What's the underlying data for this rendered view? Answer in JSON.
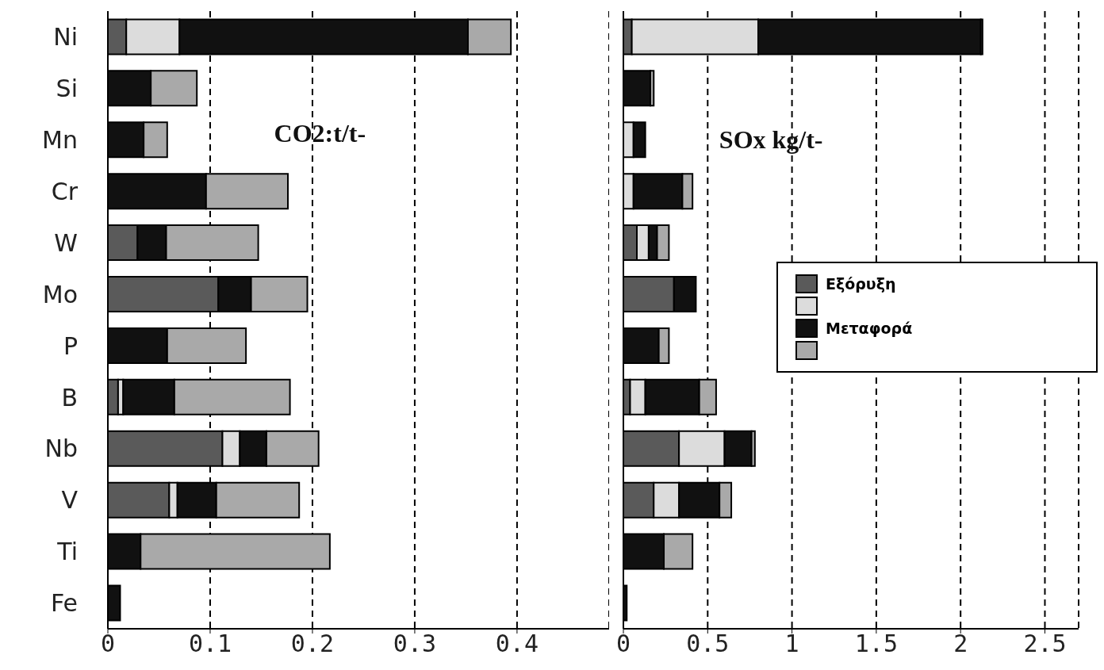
{
  "chart_data": [
    {
      "type": "bar",
      "title": "CO2:t/t-",
      "orientation": "horizontal",
      "stacked": true,
      "categories": [
        "Ni",
        "Si",
        "Mn",
        "Cr",
        "W",
        "Mo",
        "P",
        "B",
        "Nb",
        "V",
        "Ti",
        "Fe"
      ],
      "xlim": [
        0,
        0.49
      ],
      "xticks": [
        0,
        0.1,
        0.2,
        0.3,
        0.4
      ],
      "grid": "x",
      "legend": false,
      "series": [
        {
          "color": "#5a5a5a",
          "values": [
            0.018,
            0,
            0,
            0,
            0.029,
            0.108,
            0,
            0.01,
            0.112,
            0.06,
            0,
            0
          ]
        },
        {
          "color": "#dcdcdc",
          "values": [
            0.052,
            0,
            0,
            0,
            0,
            0,
            0,
            0.005,
            0.017,
            0.008,
            0,
            0
          ]
        },
        {
          "color": "#111111",
          "values": [
            0.282,
            0.042,
            0.035,
            0.096,
            0.028,
            0.032,
            0.058,
            0.05,
            0.026,
            0.038,
            0.032,
            0.012
          ]
        },
        {
          "color": "#a9a9a9",
          "values": [
            0.042,
            0.045,
            0.023,
            0.08,
            0.09,
            0.055,
            0.077,
            0.113,
            0.051,
            0.081,
            0.185,
            0
          ]
        }
      ]
    },
    {
      "type": "bar",
      "title": "SOx kg/t-",
      "orientation": "horizontal",
      "stacked": true,
      "categories": [
        null,
        null,
        null,
        null,
        null,
        null,
        null,
        null,
        null,
        null,
        null,
        null
      ],
      "xlim": [
        0,
        2.7
      ],
      "xticks": [
        0,
        0.5,
        1,
        1.5,
        2,
        2.5
      ],
      "grid": "x",
      "legend": "right",
      "tick_labels": "x",
      "series": [
        {
          "name": "Εξόρυξη",
          "color": "#5a5a5a",
          "values": [
            0.05,
            0,
            0,
            0,
            0.08,
            0.3,
            0,
            0.04,
            0.33,
            0.18,
            0,
            0
          ]
        },
        {
          "color": "#dcdcdc",
          "values": [
            0.75,
            0,
            0.06,
            0.06,
            0.07,
            0,
            0,
            0.09,
            0.27,
            0.15,
            0,
            0
          ]
        },
        {
          "name": "Μεταφορά",
          "color": "#111111",
          "values": [
            1.32,
            0.16,
            0.07,
            0.29,
            0.05,
            0.13,
            0.21,
            0.32,
            0.16,
            0.24,
            0.24,
            0.02
          ]
        },
        {
          "color": "#a9a9a9",
          "values": [
            0.01,
            0.02,
            0,
            0.06,
            0.07,
            0,
            0.06,
            0.1,
            0.02,
            0.07,
            0.17,
            0
          ]
        }
      ]
    }
  ]
}
